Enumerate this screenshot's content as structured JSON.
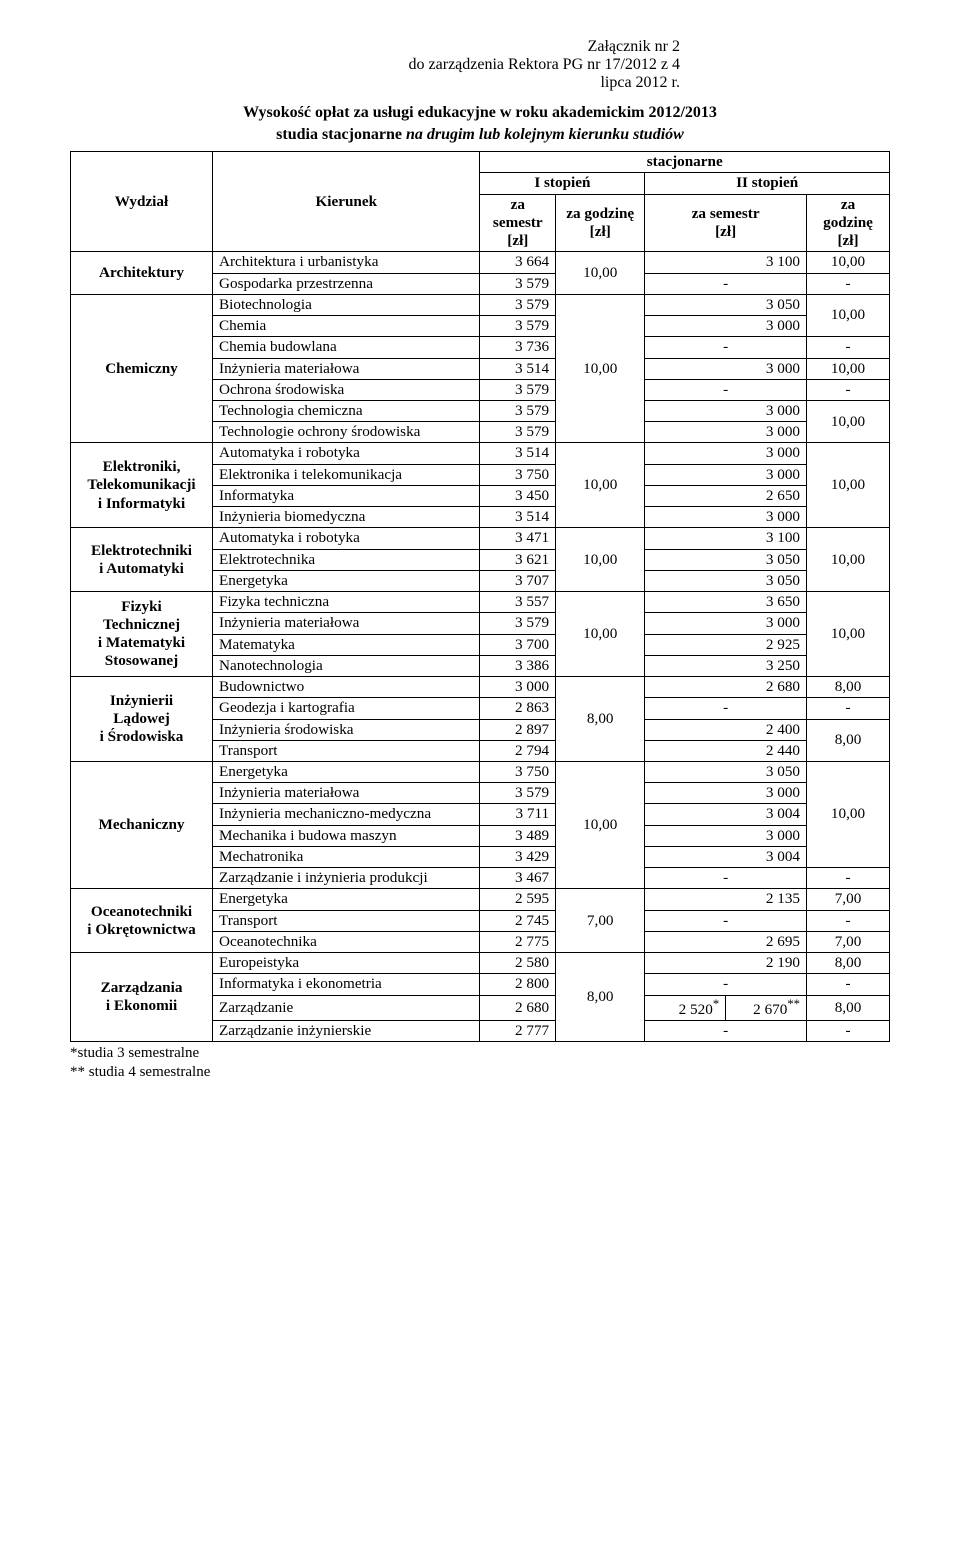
{
  "attachment_line1": "Załącznik nr 2",
  "attachment_line2": "do zarządzenia Rektora PG nr 17/2012 z 4 lipca 2012 r.",
  "title_line1": "Wysokość opłat za usługi edukacyjne w roku akademickim 2012/2013",
  "title_line2": "studia stacjonarne <i>na drugim lub kolejnym kierunku studiów</i>",
  "header": {
    "wydzial": "Wydział",
    "kierunek": "Kierunek",
    "stacjonarne": "stacjonarne",
    "stop1": "I stopień",
    "stop2": "II stopień",
    "za_semestr": "za<br>semestr<br>[zł]",
    "za_godzine": "za godzinę<br>[zł]",
    "za_semestr2": "za semestr<br>[zł]",
    "za_godzine2": "za<br>godzinę<br>[zł]"
  },
  "d1": {
    "name": "Architektury",
    "r1": "Architektura i urbanistyka",
    "r1s": "3 664",
    "r1g2s": "3 100",
    "r1g2": "10,00",
    "r2": "Gospodarka przestrzenna",
    "r2s": "3 579",
    "rate1": "10,00"
  },
  "d2": {
    "name": "Chemiczny",
    "r1": "Biotechnologia",
    "r1s": "3 579",
    "r1v": "3 050",
    "r2": "Chemia",
    "r2s": "3 579",
    "r2v": "3 000",
    "r3": "Chemia budowlana",
    "r3s": "3 736",
    "r4": "Inżynieria materiałowa",
    "r4s": "3 514",
    "r4v": "3 000",
    "r4g": "10,00",
    "r5": "Ochrona środowiska",
    "r5s": "3 579",
    "r6": "Technologia chemiczna",
    "r6s": "3 579",
    "r6v": "3 000",
    "r7": "Technologie ochrony środowiska",
    "r7s": "3 579",
    "r7v": "3 000",
    "rate1": "10,00",
    "span12": "10,00",
    "span67": "10,00"
  },
  "d3": {
    "name": "Elektroniki,<br>Telekomunikacji<br>i Informatyki",
    "r1": "Automatyka i robotyka",
    "r1s": "3 514",
    "r1v": "3 000",
    "r2": "Elektronika i telekomunikacja",
    "r2s": "3 750",
    "r2v": "3 000",
    "r3": "Informatyka",
    "r3s": "3 450",
    "r3v": "2 650",
    "r4": "Inżynieria biomedyczna",
    "r4s": "3 514",
    "r4v": "3 000",
    "rate1": "10,00",
    "span": "10,00"
  },
  "d4": {
    "name": "Elektrotechniki<br>i Automatyki",
    "r1": "Automatyka i robotyka",
    "r1s": "3 471",
    "r1v": "3 100",
    "r2": "Elektrotechnika",
    "r2s": "3 621",
    "r2v": "3 050",
    "r3": "Energetyka",
    "r3s": "3 707",
    "r3v": "3 050",
    "rate1": "10,00",
    "span": "10,00"
  },
  "d5": {
    "name": "Fizyki<br>Technicznej<br>i Matematyki<br>Stosowanej",
    "r1": "Fizyka techniczna",
    "r1s": "3 557",
    "r1v": "3 650",
    "r2": "Inżynieria materiałowa",
    "r2s": "3 579",
    "r2v": "3 000",
    "r3": "Matematyka",
    "r3s": "3 700",
    "r3v": "2 925",
    "r4": "Nanotechnologia",
    "r4s": "3 386",
    "r4v": "3 250",
    "rate1": "10,00",
    "span": "10,00"
  },
  "d6": {
    "name": "Inżynierii<br>Lądowej<br>i Środowiska",
    "r1": "Budownictwo",
    "r1s": "3 000",
    "r1v": "2 680",
    "r1g": "8,00",
    "r2": "Geodezja i kartografia",
    "r2s": "2 863",
    "r3": "Inżynieria środowiska",
    "r3s": "2 897",
    "r3v": "2 400",
    "r4": "Transport",
    "r4s": "2 794",
    "r4v": "2 440",
    "rate1": "8,00",
    "span34": "8,00"
  },
  "d7": {
    "name": "Mechaniczny",
    "r1": "Energetyka",
    "r1s": "3 750",
    "r1v": "3 050",
    "r2": "Inżynieria materiałowa",
    "r2s": "3 579",
    "r2v": "3 000",
    "r3": "Inżynieria mechaniczno-medyczna",
    "r3s": "3 711",
    "r3v": "3 004",
    "r4": "Mechanika i budowa maszyn",
    "r4s": "3 489",
    "r4v": "3 000",
    "r5": "Mechatronika",
    "r5s": "3 429",
    "r5v": "3 004",
    "r6": "Zarządzanie i inżynieria produkcji",
    "r6s": "3 467",
    "rate1": "10,00",
    "span": "10,00"
  },
  "d8": {
    "name": "Oceanotechniki<br>i Okrętownictwa",
    "r1": "Energetyka",
    "r1s": "2 595",
    "r1v": "2 135",
    "r1g": "7,00",
    "r2": "Transport",
    "r2s": "2 745",
    "r3": "Oceanotechnika",
    "r3s": "2 775",
    "r3v": "2 695",
    "r3g": "7,00",
    "rate1": "7,00"
  },
  "d9": {
    "name": "Zarządzania<br>i Ekonomii",
    "r1": "Europeistyka",
    "r1s": "2 580",
    "r1v": "2 190",
    "r1g": "8,00",
    "r2": "Informatyka i ekonometria",
    "r2s": "2 800",
    "r3": "Zarządzanie",
    "r3s": "2 680",
    "r3va": "2 520<sup>*</sup>",
    "r3vb": "2 670<sup>**</sup>",
    "r3g": "8,00",
    "r4": "Zarządzanie inżynierskie",
    "r4s": "2 777",
    "rate1": "8,00"
  },
  "footnote1": "*studia 3 semestralne",
  "footnote2": "** studia 4 semestralne",
  "dash": "-"
}
